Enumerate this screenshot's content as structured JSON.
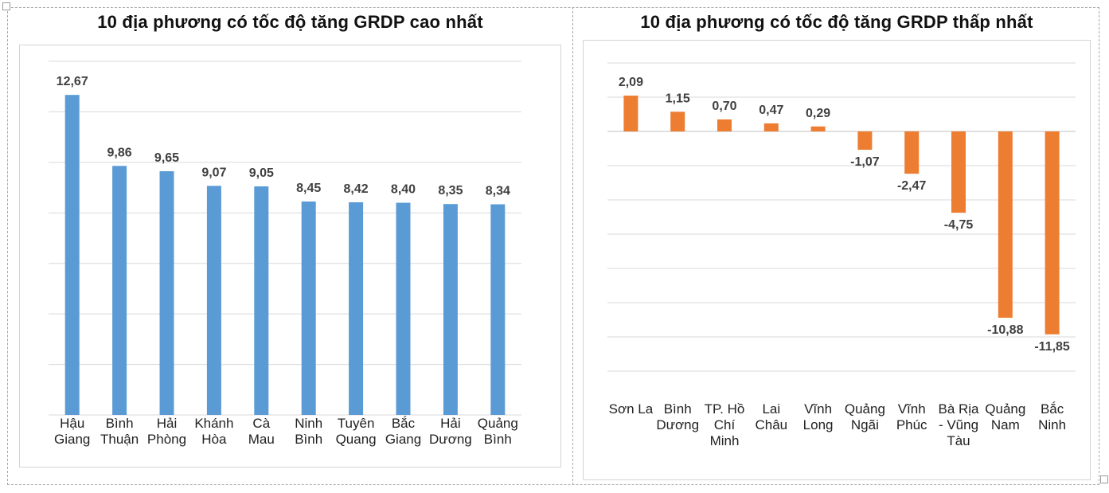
{
  "chart_data": [
    {
      "type": "bar",
      "title": "10 địa phương có tốc độ tăng GRDP cao nhất",
      "categories": [
        [
          "Hậu",
          "Giang"
        ],
        [
          "Bình",
          "Thuận"
        ],
        [
          "Hải",
          "Phòng"
        ],
        [
          "Khánh",
          "Hòa"
        ],
        [
          "Cà",
          "Mau"
        ],
        [
          "Ninh",
          "Bình"
        ],
        [
          "Tuyên",
          "Quang"
        ],
        [
          "Bắc",
          "Giang"
        ],
        [
          "Hải",
          "Dương"
        ],
        [
          "Quảng",
          "Bình"
        ]
      ],
      "values": [
        12.67,
        9.86,
        9.65,
        9.07,
        9.05,
        8.45,
        8.42,
        8.4,
        8.35,
        8.34
      ],
      "labels": [
        "12,67",
        "9,86",
        "9,65",
        "9,07",
        "9,05",
        "8,45",
        "8,42",
        "8,40",
        "8,35",
        "8,34"
      ],
      "ylim": [
        0,
        14
      ],
      "grid": true,
      "color": "#5b9bd5"
    },
    {
      "type": "bar",
      "title": "10 địa phương có tốc độ tăng GRDP thấp nhất",
      "categories": [
        [
          "Sơn La"
        ],
        [
          "Bình",
          "Dương"
        ],
        [
          "TP. Hồ",
          "Chí",
          "Minh"
        ],
        [
          "Lai",
          "Châu"
        ],
        [
          "Vĩnh",
          "Long"
        ],
        [
          "Quảng",
          "Ngãi"
        ],
        [
          "Vĩnh",
          "Phúc"
        ],
        [
          "Bà Rịa",
          "- Vũng",
          "Tàu"
        ],
        [
          "Quảng",
          "Nam"
        ],
        [
          "Bắc",
          "Ninh"
        ]
      ],
      "values": [
        2.09,
        1.15,
        0.7,
        0.47,
        0.29,
        -1.07,
        -2.47,
        -4.75,
        -10.88,
        -11.85
      ],
      "labels": [
        "2,09",
        "1,15",
        "0,70",
        "0,47",
        "0,29",
        "-1,07",
        "-2,47",
        "-4,75",
        "-10,88",
        "-11,85"
      ],
      "ylim": [
        -14,
        4
      ],
      "grid": true,
      "color": "#ed7d31"
    }
  ]
}
